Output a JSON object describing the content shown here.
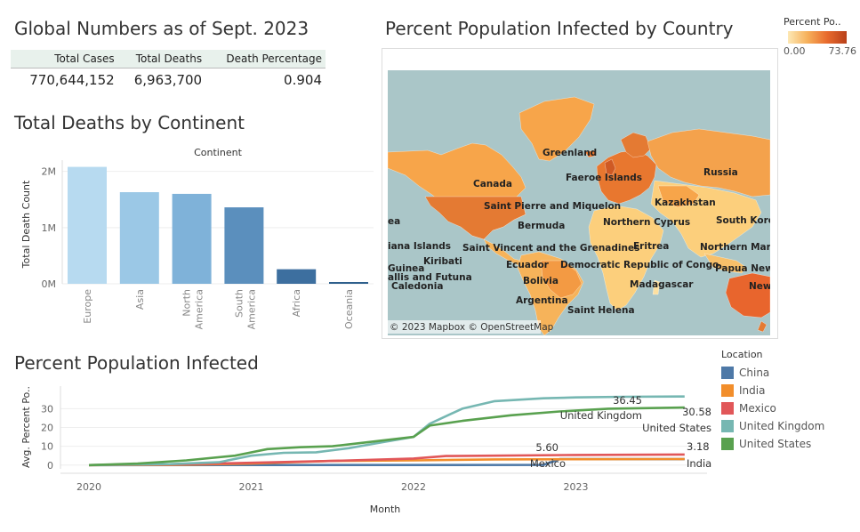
{
  "global": {
    "title": "Global Numbers as of Sept. 2023",
    "headers": [
      "Total Cases",
      "Total Deaths",
      "Death Percentage"
    ],
    "values": [
      "770,644,152",
      "6,963,700",
      "0.904"
    ]
  },
  "map": {
    "title": "Percent Population Infected by Country",
    "legend_title": "Percent Po..",
    "legend_min": "0.00",
    "legend_max": "73.76",
    "credit": "© 2023 Mapbox © OpenStreetMap",
    "labels": [
      "Greenland",
      "Faeroe Islands",
      "Russia",
      "Canada",
      "Saint Pierre and Miquelon",
      "Kazakhstan",
      "Northern Cyprus",
      "South Kore",
      "Bermuda",
      "Eritrea",
      "Northern Mari",
      "Saint Vincent and the Grenadines",
      "iana Islands",
      "Kiribati",
      "Ecuador",
      "Democratic Republic of Congo",
      "Papua New",
      "Guinea",
      "allis and Futuna",
      "Caledonia",
      "Bolivia",
      "Madagascar",
      "New",
      "Argentina",
      "Saint Helena",
      "ea"
    ]
  },
  "bar": {
    "title": "Total Deaths by Continent",
    "header": "Continent",
    "y_label": "Total Death Count",
    "ticks": [
      "2M",
      "1M",
      "0M"
    ]
  },
  "line": {
    "title": "Percent Population Infected",
    "y_label": "Avg. Percent Po..",
    "x_label": "Month",
    "legend_title": "Location"
  },
  "chart_data": [
    {
      "type": "bar",
      "title": "Total Deaths by Continent",
      "xlabel": "Continent",
      "ylabel": "Total Death Count",
      "categories": [
        "Europe",
        "Asia",
        "North America",
        "South America",
        "Africa",
        "Oceania"
      ],
      "values": [
        2080000,
        1630000,
        1600000,
        1360000,
        259000,
        24000
      ],
      "colors": [
        "#b7daf0",
        "#9bc8e6",
        "#7fb2d9",
        "#5b8fbd",
        "#3d6f9f",
        "#2e5f8c"
      ],
      "ylim": [
        0,
        2200000
      ],
      "yticks": [
        0,
        1000000,
        2000000
      ]
    },
    {
      "type": "line",
      "title": "Percent Population Infected",
      "xlabel": "Month",
      "ylabel": "Avg. Percent Po..",
      "ylim": [
        -2,
        42
      ],
      "yticks": [
        0,
        10,
        20,
        30
      ],
      "xlim": [
        2020.0,
        2023.7
      ],
      "xticks": [
        "2020",
        "2021",
        "2022",
        "2023"
      ],
      "series": [
        {
          "name": "China",
          "color": "#4e79a7",
          "x": [
            2020.0,
            2022.8,
            2022.9,
            2023.67
          ],
          "y": [
            0,
            0.1,
            3.18,
            3.18
          ],
          "end_label": "3.18",
          "end_name": ""
        },
        {
          "name": "India",
          "color": "#f28e2b",
          "x": [
            2020.0,
            2020.5,
            2021.0,
            2021.5,
            2022.0,
            2022.5,
            2023.0,
            2023.67
          ],
          "y": [
            0,
            0.1,
            0.8,
            2.2,
            2.5,
            3.0,
            3.1,
            3.2
          ],
          "end_label": "",
          "end_name": "India"
        },
        {
          "name": "Mexico",
          "color": "#e15759",
          "x": [
            2020.0,
            2020.5,
            2021.0,
            2021.5,
            2022.0,
            2022.2,
            2022.5,
            2023.0,
            2023.67
          ],
          "y": [
            0,
            0.3,
            1.2,
            2.2,
            3.5,
            4.8,
            5.0,
            5.4,
            5.6
          ],
          "end_label": "5.60",
          "end_name": "Mexico"
        },
        {
          "name": "United Kingdom",
          "color": "#76b7b2",
          "x": [
            2020.0,
            2020.5,
            2020.8,
            2021.0,
            2021.2,
            2021.4,
            2021.6,
            2021.8,
            2022.0,
            2022.1,
            2022.3,
            2022.5,
            2022.8,
            2023.0,
            2023.3,
            2023.67
          ],
          "y": [
            0,
            0.5,
            1.5,
            5.0,
            6.5,
            6.8,
            9.0,
            12.0,
            15.0,
            22.0,
            30.0,
            34.0,
            35.5,
            36.0,
            36.3,
            36.45
          ],
          "end_label": "36.45",
          "end_name": "United Kingdom"
        },
        {
          "name": "United States",
          "color": "#59a14f",
          "x": [
            2020.0,
            2020.3,
            2020.6,
            2020.9,
            2021.1,
            2021.3,
            2021.5,
            2021.8,
            2022.0,
            2022.1,
            2022.3,
            2022.6,
            2022.9,
            2023.2,
            2023.67
          ],
          "y": [
            0,
            0.8,
            2.5,
            5.0,
            8.5,
            9.5,
            10.0,
            13.0,
            15.0,
            21.0,
            23.5,
            26.5,
            28.5,
            30.0,
            30.58
          ],
          "end_label": "30.58",
          "end_name": "United States"
        }
      ]
    }
  ]
}
